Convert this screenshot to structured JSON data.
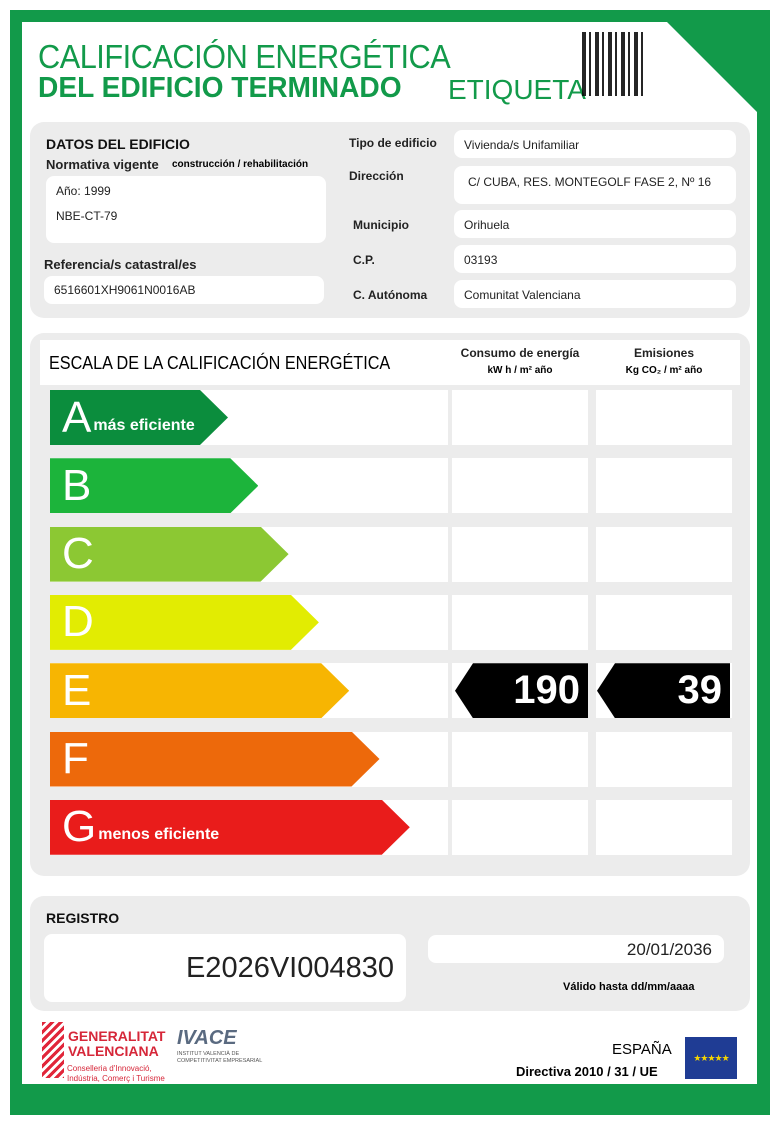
{
  "title": {
    "line1": "CALIFICACIÓN ENERGÉTICA",
    "line2": "DEL EDIFICIO  TERMINADO",
    "line3": "ETIQUETA"
  },
  "colors": {
    "brand_green": "#129a4a"
  },
  "building": {
    "section_title": "DATOS DEL EDIFICIO",
    "normativa_label": "Normativa vigente",
    "normativa_sub": "construcción / rehabilitación",
    "year": "Año: 1999",
    "norma": "NBE-CT-79",
    "ref_label": "Referencia/s catastral/es",
    "ref_value": "6516601XH9061N0016AB",
    "fields": [
      {
        "label": "Tipo de edificio",
        "value": "Vivienda/s Unifamiliar"
      },
      {
        "label": "Dirección",
        "value": "C/ CUBA, RES. MONTEGOLF FASE 2, Nº 16"
      },
      {
        "label": "Municipio",
        "value": "Orihuela"
      },
      {
        "label": "C.P.",
        "value": "03193"
      },
      {
        "label": "C. Autónoma",
        "value": "Comunitat Valenciana"
      }
    ]
  },
  "scale": {
    "title": "ESCALA DE LA CALIFICACIÓN ENERGÉTICA",
    "col1": "Consumo de energía",
    "col1_unit": "kW h / m² año",
    "col2": "Emisiones",
    "col2_unit": "Kg CO₂ / m² año",
    "classes": [
      {
        "letter": "A",
        "label": "más eficiente",
        "color": "#0b8d3d"
      },
      {
        "letter": "B",
        "label": "",
        "color": "#1cb43b"
      },
      {
        "letter": "C",
        "label": "",
        "color": "#8cc833"
      },
      {
        "letter": "D",
        "label": "",
        "color": "#e2ec02"
      },
      {
        "letter": "E",
        "label": "",
        "color": "#f7b502"
      },
      {
        "letter": "F",
        "label": "",
        "color": "#ed690b"
      },
      {
        "letter": "G",
        "label": "menos eficiente",
        "color": "#e91c1b"
      }
    ],
    "rating_class": "E",
    "consumo": "190",
    "emisiones": "39"
  },
  "registro": {
    "label": "REGISTRO",
    "code": "E2026VI004830",
    "valid_date": "20/01/2036",
    "valid_label": "Válido hasta dd/mm/aaaa"
  },
  "footer": {
    "gva_line1": "GENERALITAT",
    "gva_line2": "VALENCIANA",
    "gva_sub1": "Conselleria d'Innovació,",
    "gva_sub2": "Indústria, Comerç i Turisme",
    "ivace": "IVACE",
    "ivace_sub1": "INSTITUT VALENCIÀ DE",
    "ivace_sub2": "COMPETITIVITAT EMPRESARIAL",
    "country": "ESPAÑA",
    "directive": "Directiva 2010 / 31 / UE"
  }
}
